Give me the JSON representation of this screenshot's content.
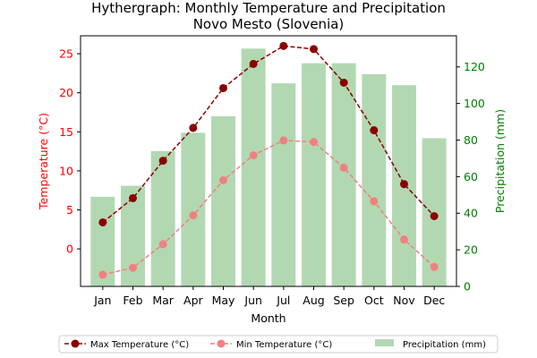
{
  "chart_data": {
    "type": "bar+line",
    "title": "Hythergraph: Monthly Temperature and Precipitation",
    "subtitle": "Novo Mesto (Slovenia)",
    "xlabel": "Month",
    "ylabel_left": "Temperature (°C)",
    "ylabel_right": "Precipitation (mm)",
    "categories": [
      "Jan",
      "Feb",
      "Mar",
      "Apr",
      "May",
      "Jun",
      "Jul",
      "Aug",
      "Sep",
      "Oct",
      "Nov",
      "Dec"
    ],
    "ylim_left": [
      -4.8,
      27.3
    ],
    "ylim_right": [
      0,
      137
    ],
    "left_ticks": [
      0,
      5,
      10,
      15,
      20,
      25
    ],
    "right_ticks": [
      0,
      20,
      40,
      60,
      80,
      100,
      120
    ],
    "grid": false,
    "legend_position": "bottom",
    "series": [
      {
        "name": "Max Temperature (°C)",
        "kind": "line",
        "axis": "left",
        "color": "#8b0000",
        "values": [
          3.4,
          6.5,
          11.3,
          15.5,
          20.6,
          23.7,
          26.0,
          25.6,
          21.3,
          15.2,
          8.3,
          4.2
        ]
      },
      {
        "name": "Min Temperature (°C)",
        "kind": "line",
        "axis": "left",
        "color": "#f08080",
        "values": [
          -3.3,
          -2.4,
          0.6,
          4.3,
          8.8,
          12.0,
          13.9,
          13.7,
          10.4,
          6.1,
          1.2,
          -2.3
        ]
      },
      {
        "name": "Precipitation (mm)",
        "kind": "bar",
        "axis": "right",
        "color": "#b2d8b2",
        "values": [
          49,
          55,
          74,
          84,
          93,
          130,
          111,
          122,
          122,
          116,
          110,
          81
        ]
      }
    ]
  }
}
